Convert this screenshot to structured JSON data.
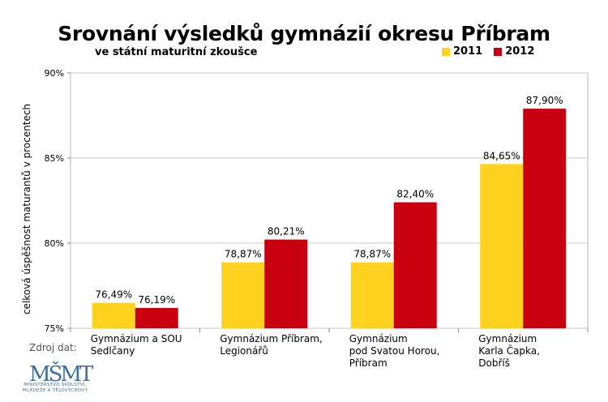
{
  "chart_data": {
    "type": "bar",
    "title": "Srovnání výsledků gymnázií okresu Příbram",
    "subtitle": "ve státní maturitní zkoušce",
    "xlabel": "",
    "ylabel": "celková úspěšnost maturantů v procentech",
    "ylim": [
      75,
      90
    ],
    "yticks": [
      75,
      80,
      85,
      90
    ],
    "ytick_labels": [
      "75%",
      "80%",
      "85%",
      "90%"
    ],
    "grid": true,
    "legend_position": "top-right",
    "categories": [
      [
        "Gymnázium a SOU",
        "Sedlčany"
      ],
      [
        "Gymnázium Příbram,",
        "Legionářů"
      ],
      [
        "Gymnázium",
        "pod Svatou Horou,",
        "Příbram"
      ],
      [
        "Gymnázium",
        "Karla Čapka,",
        "Dobříš"
      ]
    ],
    "series": [
      {
        "name": "2011",
        "color": "#FFD21F",
        "values": [
          76.49,
          78.87,
          78.87,
          84.65
        ],
        "labels": [
          "76,49%",
          "78,87%",
          "78,87%",
          "84,65%"
        ]
      },
      {
        "name": "2012",
        "color": "#C8000F",
        "values": [
          76.19,
          80.21,
          82.4,
          87.9
        ],
        "labels": [
          "76,19%",
          "80,21%",
          "82,40%",
          "87,90%"
        ]
      }
    ]
  },
  "source": {
    "label": "Zdroj dat:",
    "logo_text_line1": "MINISTERSTVO ŠKOLSTVÍ,",
    "logo_text_line2": "MLÁDEŽE A TĚLOVÝCHOVY",
    "logo_letters": "MŠMT"
  }
}
